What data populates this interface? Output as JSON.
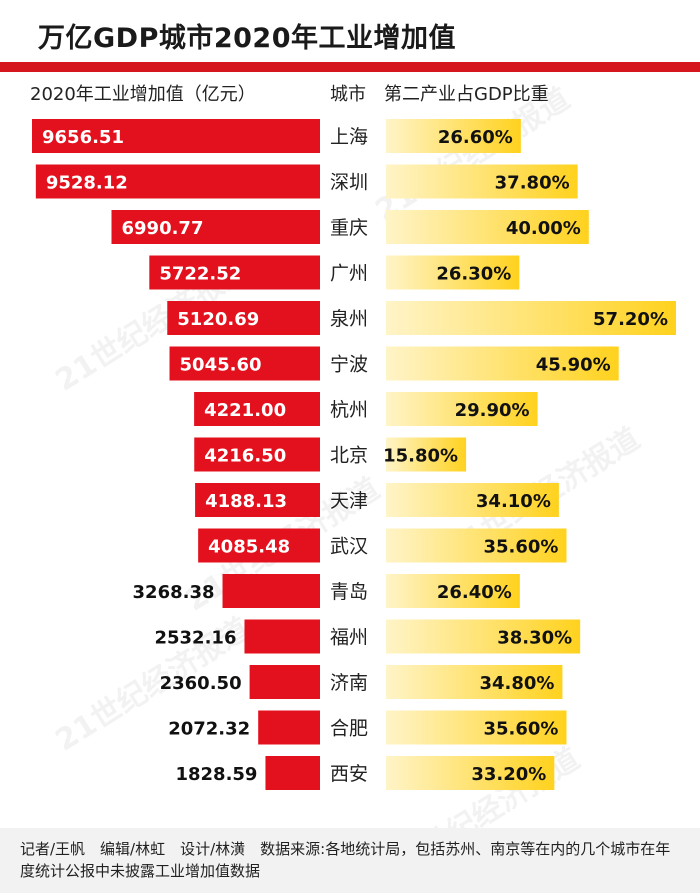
{
  "title": "万亿GDP城市2020年工业增加值",
  "headers": {
    "left": "2020年工业增加值（亿元）",
    "city": "城市",
    "right": "第二产业占GDP比重"
  },
  "colors": {
    "accent": "#d6161f",
    "bar_red": "#e3101d",
    "bar_yellow_start": "#fff4c8",
    "bar_yellow_end": "#ffd21e"
  },
  "watermark": "21世纪经济报道",
  "chart_data": {
    "type": "bar",
    "categories": [
      "上海",
      "深圳",
      "重庆",
      "广州",
      "泉州",
      "宁波",
      "杭州",
      "北京",
      "天津",
      "武汉",
      "青岛",
      "福州",
      "济南",
      "合肥",
      "西安"
    ],
    "series": [
      {
        "name": "2020年工业增加值（亿元）",
        "values": [
          9656.51,
          9528.12,
          6990.77,
          5722.52,
          5120.69,
          5045.6,
          4221.0,
          4216.5,
          4188.13,
          4085.48,
          3268.38,
          2532.16,
          2360.5,
          2072.32,
          1828.59
        ],
        "labels": [
          "9656.51",
          "9528.12",
          "6990.77",
          "5722.52",
          "5120.69",
          "5045.60",
          "4221.00",
          "4216.50",
          "4188.13",
          "4085.48",
          "3268.38",
          "2532.16",
          "2360.50",
          "2072.32",
          "1828.59"
        ]
      },
      {
        "name": "第二产业占GDP比重",
        "values": [
          26.6,
          37.8,
          40.0,
          26.3,
          57.2,
          45.9,
          29.9,
          15.8,
          34.1,
          35.6,
          26.4,
          38.3,
          34.8,
          35.6,
          33.2
        ],
        "labels": [
          "26.60%",
          "37.80%",
          "40.00%",
          "26.30%",
          "57.20%",
          "45.90%",
          "29.90%",
          "15.80%",
          "34.10%",
          "35.60%",
          "26.40%",
          "38.30%",
          "34.80%",
          "35.60%",
          "33.20%"
        ]
      }
    ]
  },
  "footer": "记者/王帆　编辑/林虹　设计/林潢　数据来源:各地统计局，包括苏州、南京等在内的几个城市在年度统计公报中未披露工业增加值数据"
}
